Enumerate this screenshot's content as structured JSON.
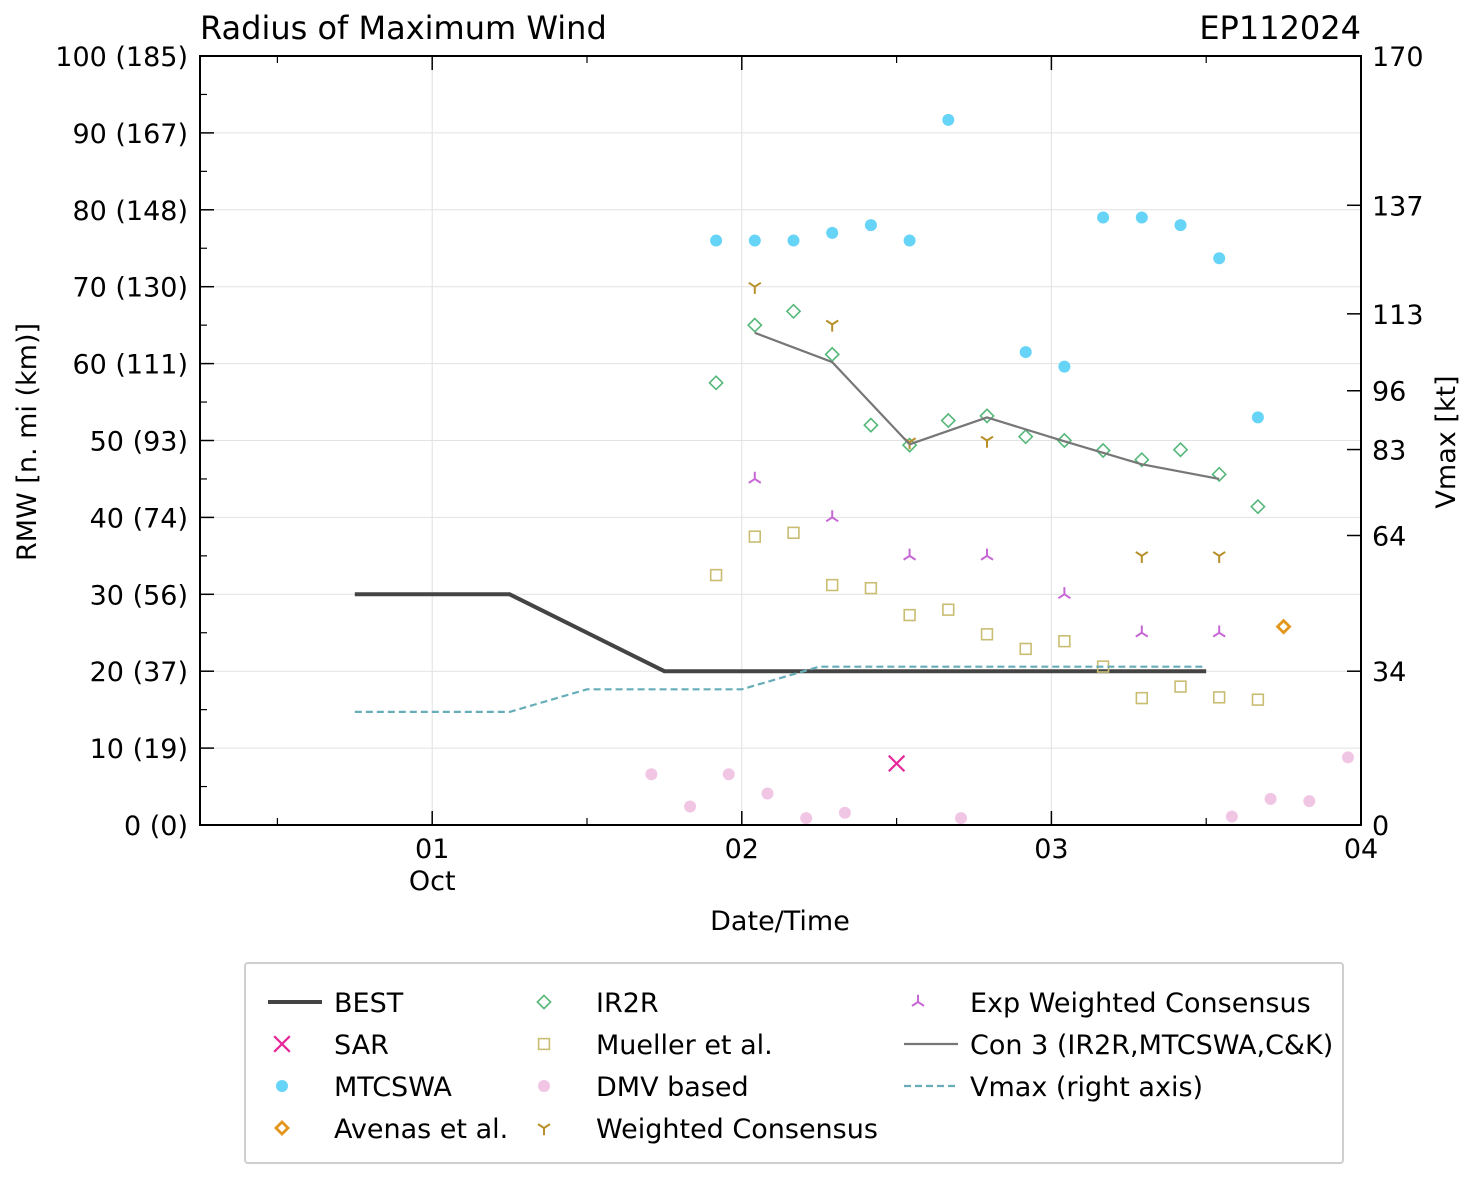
{
  "chart_data": {
    "type": "scatter",
    "title": "Radius of Maximum Wind",
    "storm_id": "EP112024",
    "xlabel": "Date/Time",
    "ylabel": "RMW [n. mi (km)]",
    "y2label": "Vmax [kt]",
    "xlim": [
      0.25,
      4.0
    ],
    "ylim": [
      0,
      100
    ],
    "y2lim": [
      0,
      170
    ],
    "grid": true,
    "x_ticks": [
      {
        "value": 1,
        "label": "01"
      },
      {
        "value": 2,
        "label": "02"
      },
      {
        "value": 3,
        "label": "03"
      },
      {
        "value": 4,
        "label": "04"
      }
    ],
    "x_month_label": {
      "value": 1,
      "label": "Oct"
    },
    "y_ticks": [
      {
        "value": 0,
        "label": "0 (0)"
      },
      {
        "value": 10,
        "label": "10 (19)"
      },
      {
        "value": 20,
        "label": "20 (37)"
      },
      {
        "value": 30,
        "label": "30 (56)"
      },
      {
        "value": 40,
        "label": "40 (74)"
      },
      {
        "value": 50,
        "label": "50 (93)"
      },
      {
        "value": 60,
        "label": "60 (111)"
      },
      {
        "value": 70,
        "label": "70 (130)"
      },
      {
        "value": 80,
        "label": "80 (148)"
      },
      {
        "value": 90,
        "label": "90 (167)"
      },
      {
        "value": 100,
        "label": "100 (185)"
      }
    ],
    "y2_ticks": [
      {
        "value": 0,
        "label": "0"
      },
      {
        "value": 34,
        "label": "34"
      },
      {
        "value": 64,
        "label": "64"
      },
      {
        "value": 83,
        "label": "83"
      },
      {
        "value": 96,
        "label": "96"
      },
      {
        "value": 113,
        "label": "113"
      },
      {
        "value": 137,
        "label": "137"
      },
      {
        "value": 170,
        "label": "170"
      }
    ],
    "series": [
      {
        "name": "BEST",
        "kind": "line",
        "color": "#444444",
        "points": [
          [
            0.75,
            30
          ],
          [
            1.25,
            30
          ],
          [
            1.75,
            20
          ],
          [
            3.5,
            20
          ]
        ]
      },
      {
        "name": "SAR",
        "kind": "marker",
        "marker": "x",
        "color": "#e8289a",
        "points": [
          [
            2.5,
            8
          ]
        ]
      },
      {
        "name": "MTCSWA",
        "kind": "marker",
        "marker": "circle",
        "color": "#66d4f7",
        "points": [
          [
            1.917,
            76
          ],
          [
            2.042,
            76
          ],
          [
            2.167,
            76
          ],
          [
            2.292,
            77
          ],
          [
            2.417,
            78
          ],
          [
            2.542,
            76
          ],
          [
            2.667,
            91.7
          ],
          [
            2.917,
            61.5
          ],
          [
            3.042,
            59.6
          ],
          [
            3.167,
            79
          ],
          [
            3.292,
            79
          ],
          [
            3.417,
            78
          ],
          [
            3.542,
            73.7
          ],
          [
            3.667,
            53
          ]
        ]
      },
      {
        "name": "Avenas et al.",
        "kind": "marker",
        "marker": "diamond-bold",
        "color": "#e3961c",
        "points": [
          [
            3.75,
            25.8
          ]
        ]
      },
      {
        "name": "IR2R",
        "kind": "marker",
        "marker": "diamond",
        "color": "#56b77a",
        "points": [
          [
            1.917,
            57.5
          ],
          [
            2.042,
            65
          ],
          [
            2.167,
            66.8
          ],
          [
            2.292,
            61.2
          ],
          [
            2.417,
            52
          ],
          [
            2.542,
            49.4
          ],
          [
            2.667,
            52.6
          ],
          [
            2.792,
            53.2
          ],
          [
            2.917,
            50.5
          ],
          [
            3.042,
            50
          ],
          [
            3.167,
            48.7
          ],
          [
            3.292,
            47.5
          ],
          [
            3.417,
            48.8
          ],
          [
            3.542,
            45.6
          ],
          [
            3.667,
            41.4
          ]
        ]
      },
      {
        "name": "Mueller et al.",
        "kind": "marker",
        "marker": "square",
        "color": "#c9bd72",
        "points": [
          [
            1.917,
            32.5
          ],
          [
            2.042,
            37.5
          ],
          [
            2.167,
            38
          ],
          [
            2.292,
            31.2
          ],
          [
            2.417,
            30.8
          ],
          [
            2.542,
            27.3
          ],
          [
            2.667,
            28
          ],
          [
            2.792,
            24.8
          ],
          [
            2.917,
            22.9
          ],
          [
            3.042,
            23.9
          ],
          [
            3.167,
            20.6
          ],
          [
            3.292,
            16.5
          ],
          [
            3.417,
            18
          ],
          [
            3.542,
            16.6
          ],
          [
            3.667,
            16.3
          ]
        ]
      },
      {
        "name": "DMV based",
        "kind": "marker",
        "marker": "circle",
        "color": "#f1c6e4",
        "points": [
          [
            1.708,
            6.6
          ],
          [
            1.833,
            2.4
          ],
          [
            1.958,
            6.6
          ],
          [
            2.083,
            4.1
          ],
          [
            2.208,
            0.9
          ],
          [
            2.333,
            1.6
          ],
          [
            2.708,
            0.9
          ],
          [
            3.583,
            1.1
          ],
          [
            3.708,
            3.4
          ],
          [
            3.833,
            3.1
          ],
          [
            3.958,
            8.8
          ]
        ]
      },
      {
        "name": "Weighted Consensus",
        "kind": "marker",
        "marker": "tri-down",
        "color": "#b8902a",
        "points": [
          [
            2.042,
            70
          ],
          [
            2.292,
            65.1
          ],
          [
            2.542,
            49.8
          ],
          [
            2.792,
            50
          ],
          [
            3.292,
            35
          ],
          [
            3.542,
            35
          ]
        ]
      },
      {
        "name": "Exp Weighted Consensus",
        "kind": "marker",
        "marker": "tri-up",
        "color": "#c767d6",
        "points": [
          [
            2.042,
            45
          ],
          [
            2.292,
            40
          ],
          [
            2.542,
            35
          ],
          [
            2.792,
            35
          ],
          [
            3.042,
            30
          ],
          [
            3.292,
            25
          ],
          [
            3.542,
            25
          ]
        ]
      },
      {
        "name": "Con 3 (IR2R,MTCSWA,C&K)",
        "kind": "line",
        "color": "#777777",
        "points": [
          [
            2.042,
            64
          ],
          [
            2.292,
            60.2
          ],
          [
            2.542,
            49.5
          ],
          [
            2.792,
            53
          ],
          [
            3.042,
            49.9
          ],
          [
            3.292,
            46.9
          ],
          [
            3.542,
            45
          ]
        ]
      },
      {
        "name": "Vmax (right axis)",
        "kind": "dashed",
        "axis": "right",
        "color": "#66adb8",
        "points": [
          [
            0.75,
            25
          ],
          [
            1.25,
            25
          ],
          [
            1.5,
            30
          ],
          [
            2.0,
            30
          ],
          [
            2.25,
            35
          ],
          [
            3.5,
            35
          ]
        ]
      }
    ]
  }
}
